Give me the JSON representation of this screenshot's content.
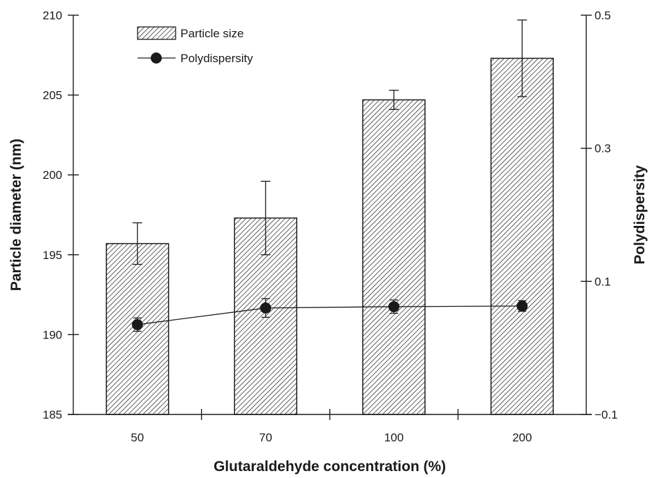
{
  "chart_data": {
    "type": "bar",
    "xlabel": "Glutaraldehyde concentration (%)",
    "ylabel": "Particle diameter (nm)",
    "y2label": "Polydispersity",
    "categories": [
      "50",
      "70",
      "100",
      "200"
    ],
    "ylim": [
      185,
      210
    ],
    "yticks": [
      "185",
      "190",
      "195",
      "200",
      "205",
      "210"
    ],
    "y2lim": [
      -0.1,
      0.5
    ],
    "y2ticks": [
      "−0.1",
      "0.1",
      "0.3",
      "0.5"
    ],
    "series": [
      {
        "name": "Particle size",
        "kind": "bar",
        "axis": "left",
        "values": [
          195.7,
          197.3,
          204.7,
          207.3
        ],
        "errors": [
          1.3,
          2.3,
          0.6,
          2.4
        ]
      },
      {
        "name": "Polydispersity",
        "kind": "line",
        "axis": "right",
        "values": [
          0.035,
          0.06,
          0.062,
          0.063
        ],
        "errors": [
          0.01,
          0.014,
          0.01,
          0.008
        ]
      }
    ],
    "legend": "top-left",
    "grid": false,
    "colors": {
      "ink": "#1a1a1a",
      "bar_fill": "#ffffff",
      "hatch": "#1a1a1a"
    }
  }
}
